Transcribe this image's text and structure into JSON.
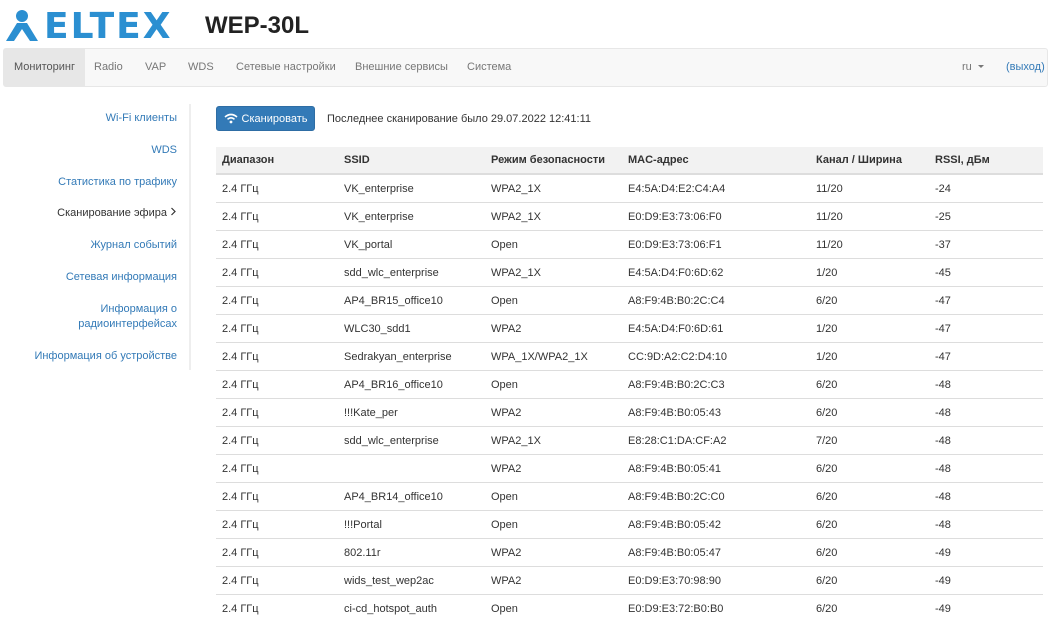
{
  "header": {
    "logo": "ELTEX",
    "model": "WEP-30L"
  },
  "nav": {
    "items": [
      "Мониторинг",
      "Radio",
      "VAP",
      "WDS",
      "Сетевые настройки",
      "Внешние сервисы",
      "Система"
    ],
    "language": "ru",
    "logout": "(выход)"
  },
  "sidebar": {
    "items": [
      "Wi-Fi клиенты",
      "WDS",
      "Статистика по трафику",
      "Сканирование эфира",
      "Журнал событий",
      "Сетевая информация",
      "Информация о радиоинтерфейсах",
      "Информация об устройстве"
    ]
  },
  "scan_button": "Сканировать",
  "last_scan": "Последнее сканирование было 29.07.2022 12:41:11",
  "table": {
    "columns": [
      "Диапазон",
      "SSID",
      "Режим безопасности",
      "MAC-адрес",
      "Канал / Ширина",
      "RSSI, дБм"
    ],
    "rows": [
      [
        "2.4 ГГц",
        "VK_enterprise",
        "WPA2_1X",
        "E4:5A:D4:E2:C4:A4",
        "11/20",
        -24
      ],
      [
        "2.4 ГГц",
        "VK_enterprise",
        "WPA2_1X",
        "E0:D9:E3:73:06:F0",
        "11/20",
        -25
      ],
      [
        "2.4 ГГц",
        "VK_portal",
        "Open",
        "E0:D9:E3:73:06:F1",
        "11/20",
        -37
      ],
      [
        "2.4 ГГц",
        "sdd_wlc_enterprise",
        "WPA2_1X",
        "E4:5A:D4:F0:6D:62",
        "1/20",
        -45
      ],
      [
        "2.4 ГГц",
        "AP4_BR15_office10",
        "Open",
        "A8:F9:4B:B0:2C:C4",
        "6/20",
        -47
      ],
      [
        "2.4 ГГц",
        "WLC30_sdd1",
        "WPA2",
        "E4:5A:D4:F0:6D:61",
        "1/20",
        -47
      ],
      [
        "2.4 ГГц",
        "Sedrakyan_enterprise",
        "WPA_1X/WPA2_1X",
        "CC:9D:A2:C2:D4:10",
        "1/20",
        -47
      ],
      [
        "2.4 ГГц",
        "AP4_BR16_office10",
        "Open",
        "A8:F9:4B:B0:2C:C3",
        "6/20",
        -48
      ],
      [
        "2.4 ГГц",
        "!!!Kate_per",
        "WPA2",
        "A8:F9:4B:B0:05:43",
        "6/20",
        -48
      ],
      [
        "2.4 ГГц",
        "sdd_wlc_enterprise",
        "WPA2_1X",
        "E8:28:C1:DA:CF:A2",
        "7/20",
        -48
      ],
      [
        "2.4 ГГц",
        null,
        "WPA2",
        "A8:F9:4B:B0:05:41",
        "6/20",
        -48
      ],
      [
        "2.4 ГГц",
        "AP4_BR14_office10",
        "Open",
        "A8:F9:4B:B0:2C:C0",
        "6/20",
        -48
      ],
      [
        "2.4 ГГц",
        "!!!Portal",
        "Open",
        "A8:F9:4B:B0:05:42",
        "6/20",
        -48
      ],
      [
        "2.4 ГГц",
        "802.11r",
        "WPA2",
        "A8:F9:4B:B0:05:47",
        "6/20",
        -49
      ],
      [
        "2.4 ГГц",
        "wids_test_wep2ac",
        "WPA2",
        "E0:D9:E3:70:98:90",
        "6/20",
        -49
      ],
      [
        "2.4 ГГц",
        "ci-cd_hotspot_auth",
        "Open",
        "E0:D9:E3:72:B0:B0",
        "6/20",
        -49
      ]
    ]
  }
}
